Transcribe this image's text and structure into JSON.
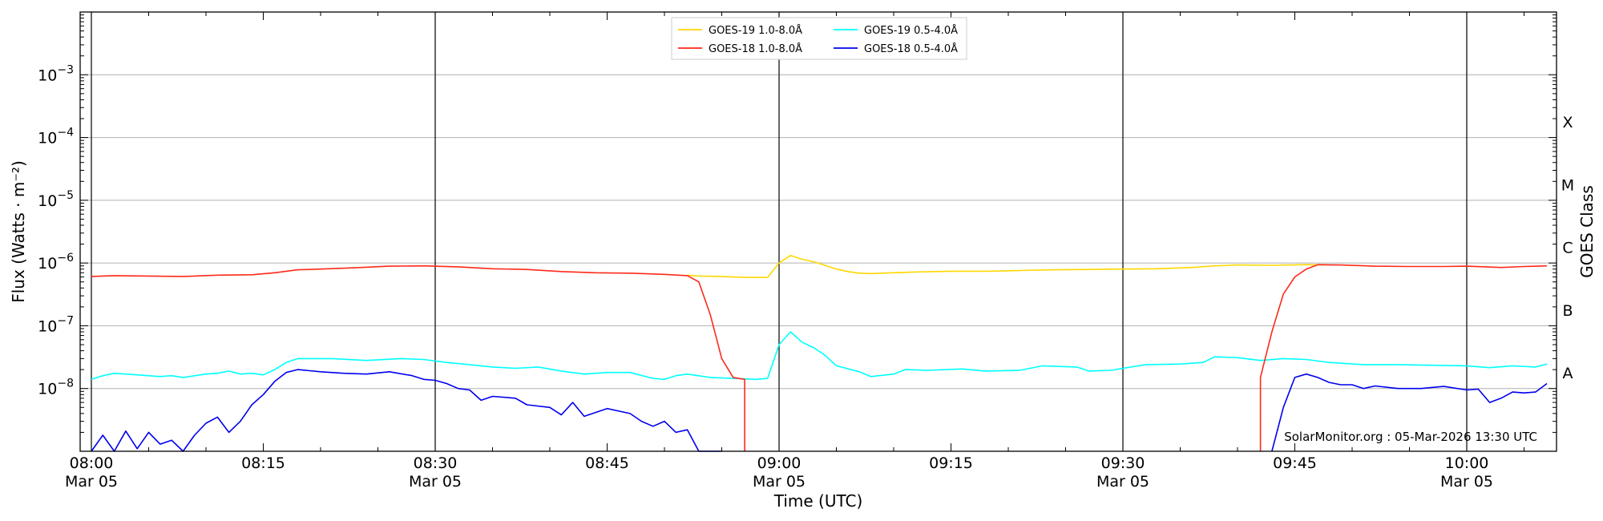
{
  "chart_data": {
    "type": "line",
    "xlabel": "Time (UTC)",
    "ylabel": "Flux (Watts · m⁻²)",
    "ylabel_right": "GOES Class",
    "yscale": "log",
    "ylim": [
      1e-09,
      0.01
    ],
    "xlim": [
      "08:00",
      "10:07"
    ],
    "grid": "horizontal",
    "legend_position": "top-center",
    "footer": "SolarMonitor.org : 05-Mar-2026 13:30 UTC",
    "x_ticks": [
      {
        "time": "08:00",
        "label": "08:00",
        "sub": "Mar 05"
      },
      {
        "time": "08:15",
        "label": "08:15",
        "sub": ""
      },
      {
        "time": "08:30",
        "label": "08:30",
        "sub": "Mar 05"
      },
      {
        "time": "08:45",
        "label": "08:45",
        "sub": ""
      },
      {
        "time": "09:00",
        "label": "09:00",
        "sub": "Mar 05"
      },
      {
        "time": "09:15",
        "label": "09:15",
        "sub": ""
      },
      {
        "time": "09:30",
        "label": "09:30",
        "sub": "Mar 05"
      },
      {
        "time": "09:45",
        "label": "09:45",
        "sub": ""
      },
      {
        "time": "10:00",
        "label": "10:00",
        "sub": "Mar 05"
      }
    ],
    "vlines": [
      "08:00",
      "08:30",
      "09:00",
      "09:30",
      "10:00"
    ],
    "y_ticks": [
      {
        "value": 1e-08,
        "base": "10",
        "exp": "−8"
      },
      {
        "value": 1e-07,
        "base": "10",
        "exp": "−7"
      },
      {
        "value": 1e-06,
        "base": "10",
        "exp": "−6"
      },
      {
        "value": 1e-05,
        "base": "10",
        "exp": "−5"
      },
      {
        "value": 0.0001,
        "base": "10",
        "exp": "−4"
      },
      {
        "value": 0.001,
        "base": "10",
        "exp": "−3"
      }
    ],
    "class_labels": [
      {
        "label": "A",
        "value": 1.78e-08
      },
      {
        "label": "B",
        "value": 1.78e-07
      },
      {
        "label": "C",
        "value": 1.78e-06
      },
      {
        "label": "M",
        "value": 1.78e-05
      },
      {
        "label": "X",
        "value": 0.000178
      }
    ],
    "series": [
      {
        "name": "GOES-19 1.0-8.0Å",
        "color": "#ffd700",
        "points": [
          [
            "08:52",
            6.4e-07
          ],
          [
            "08:53",
            6.2e-07
          ],
          [
            "08:55",
            6.1e-07
          ],
          [
            "08:57",
            5.9e-07
          ],
          [
            "08:59",
            5.9e-07
          ],
          [
            "09:00",
            1e-06
          ],
          [
            "09:01",
            1.32e-06
          ],
          [
            "09:02",
            1.15e-06
          ],
          [
            "09:03",
            1.05e-06
          ],
          [
            "09:04",
            9.2e-07
          ],
          [
            "09:05",
            8e-07
          ],
          [
            "09:06",
            7.3e-07
          ],
          [
            "09:07",
            6.9e-07
          ],
          [
            "09:08",
            6.8e-07
          ],
          [
            "09:10",
            7e-07
          ],
          [
            "09:12",
            7.2e-07
          ],
          [
            "09:15",
            7.4e-07
          ],
          [
            "09:18",
            7.4e-07
          ],
          [
            "09:21",
            7.6e-07
          ],
          [
            "09:24",
            7.8e-07
          ],
          [
            "09:27",
            7.9e-07
          ],
          [
            "09:30",
            8e-07
          ],
          [
            "09:33",
            8.1e-07
          ],
          [
            "09:36",
            8.5e-07
          ],
          [
            "09:38",
            9e-07
          ],
          [
            "09:40",
            9.3e-07
          ],
          [
            "09:43",
            9.2e-07
          ],
          [
            "09:46",
            9.4e-07
          ],
          [
            "09:48",
            9.3e-07
          ]
        ]
      },
      {
        "name": "GOES-18 1.0-8.0Å",
        "color": "#ff2a1a",
        "points": [
          [
            "08:00",
            6.1e-07
          ],
          [
            "08:02",
            6.3e-07
          ],
          [
            "08:05",
            6.2e-07
          ],
          [
            "08:08",
            6.1e-07
          ],
          [
            "08:11",
            6.4e-07
          ],
          [
            "08:14",
            6.5e-07
          ],
          [
            "08:16",
            7e-07
          ],
          [
            "08:18",
            7.8e-07
          ],
          [
            "08:20",
            8e-07
          ],
          [
            "08:23",
            8.4e-07
          ],
          [
            "08:26",
            8.9e-07
          ],
          [
            "08:29",
            9e-07
          ],
          [
            "08:32",
            8.7e-07
          ],
          [
            "08:35",
            8.1e-07
          ],
          [
            "08:38",
            7.9e-07
          ],
          [
            "08:41",
            7.3e-07
          ],
          [
            "08:44",
            7e-07
          ],
          [
            "08:47",
            6.9e-07
          ],
          [
            "08:50",
            6.6e-07
          ],
          [
            "08:52",
            6.3e-07
          ],
          [
            "08:53",
            5e-07
          ],
          [
            "08:54",
            1.5e-07
          ],
          [
            "08:55",
            3e-08
          ],
          [
            "08:56",
            1.5e-08
          ],
          [
            "08:57",
            1.4e-08
          ],
          [
            "08:57",
            1e-09
          ]
        ],
        "points_b": [
          [
            "09:42",
            1e-09
          ],
          [
            "09:42",
            1.5e-08
          ],
          [
            "09:43",
            8e-08
          ],
          [
            "09:44",
            3.2e-07
          ],
          [
            "09:45",
            6e-07
          ],
          [
            "09:46",
            8e-07
          ],
          [
            "09:47",
            9.4e-07
          ],
          [
            "09:49",
            9.3e-07
          ],
          [
            "09:52",
            8.9e-07
          ],
          [
            "09:55",
            8.8e-07
          ],
          [
            "09:58",
            8.8e-07
          ],
          [
            "10:00",
            8.9e-07
          ],
          [
            "10:03",
            8.5e-07
          ],
          [
            "10:05",
            8.8e-07
          ],
          [
            "10:07",
            9e-07
          ]
        ]
      },
      {
        "name": "GOES-19 0.5-4.0Å",
        "color": "#00ffff",
        "points": [
          [
            "08:00",
            1.4e-08
          ],
          [
            "08:01",
            1.6e-08
          ],
          [
            "08:02",
            1.75e-08
          ],
          [
            "08:04",
            1.65e-08
          ],
          [
            "08:06",
            1.55e-08
          ],
          [
            "08:07",
            1.6e-08
          ],
          [
            "08:08",
            1.5e-08
          ],
          [
            "08:10",
            1.7e-08
          ],
          [
            "08:11",
            1.75e-08
          ],
          [
            "08:12",
            1.9e-08
          ],
          [
            "08:13",
            1.7e-08
          ],
          [
            "08:14",
            1.75e-08
          ],
          [
            "08:15",
            1.65e-08
          ],
          [
            "08:16",
            2e-08
          ],
          [
            "08:17",
            2.6e-08
          ],
          [
            "08:18",
            3e-08
          ],
          [
            "08:21",
            3e-08
          ],
          [
            "08:24",
            2.8e-08
          ],
          [
            "08:27",
            3e-08
          ],
          [
            "08:29",
            2.9e-08
          ],
          [
            "08:31",
            2.6e-08
          ],
          [
            "08:33",
            2.4e-08
          ],
          [
            "08:35",
            2.2e-08
          ],
          [
            "08:37",
            2.1e-08
          ],
          [
            "08:39",
            2.2e-08
          ],
          [
            "08:41",
            1.9e-08
          ],
          [
            "08:43",
            1.7e-08
          ],
          [
            "08:45",
            1.8e-08
          ],
          [
            "08:47",
            1.8e-08
          ],
          [
            "08:49",
            1.45e-08
          ],
          [
            "08:50",
            1.4e-08
          ],
          [
            "08:51",
            1.6e-08
          ],
          [
            "08:52",
            1.7e-08
          ],
          [
            "08:54",
            1.5e-08
          ],
          [
            "08:56",
            1.45e-08
          ],
          [
            "08:58",
            1.4e-08
          ],
          [
            "08:59",
            1.45e-08
          ],
          [
            "09:00",
            5e-08
          ],
          [
            "09:01",
            8e-08
          ],
          [
            "09:02",
            5.5e-08
          ],
          [
            "09:03",
            4.5e-08
          ],
          [
            "09:04",
            3.4e-08
          ],
          [
            "09:05",
            2.3e-08
          ],
          [
            "09:07",
            1.85e-08
          ],
          [
            "09:08",
            1.55e-08
          ],
          [
            "09:10",
            1.7e-08
          ],
          [
            "09:11",
            2e-08
          ],
          [
            "09:13",
            1.95e-08
          ],
          [
            "09:16",
            2.05e-08
          ],
          [
            "09:18",
            1.9e-08
          ],
          [
            "09:21",
            1.95e-08
          ],
          [
            "09:23",
            2.3e-08
          ],
          [
            "09:26",
            2.2e-08
          ],
          [
            "09:27",
            1.9e-08
          ],
          [
            "09:29",
            1.95e-08
          ],
          [
            "09:30",
            2.1e-08
          ],
          [
            "09:32",
            2.4e-08
          ],
          [
            "09:35",
            2.45e-08
          ],
          [
            "09:37",
            2.6e-08
          ],
          [
            "09:38",
            3.2e-08
          ],
          [
            "09:40",
            3.1e-08
          ],
          [
            "09:42",
            2.8e-08
          ],
          [
            "09:44",
            3e-08
          ],
          [
            "09:46",
            2.9e-08
          ],
          [
            "09:48",
            2.6e-08
          ],
          [
            "09:51",
            2.4e-08
          ],
          [
            "09:54",
            2.4e-08
          ],
          [
            "09:57",
            2.35e-08
          ],
          [
            "10:00",
            2.3e-08
          ],
          [
            "10:02",
            2.15e-08
          ],
          [
            "10:04",
            2.3e-08
          ],
          [
            "10:06",
            2.2e-08
          ],
          [
            "10:07",
            2.45e-08
          ]
        ]
      },
      {
        "name": "GOES-18 0.5-4.0Å",
        "color": "#0000ee",
        "points": [
          [
            "08:00",
            1e-09
          ],
          [
            "08:01",
            1.8e-09
          ],
          [
            "08:02",
            1e-09
          ],
          [
            "08:03",
            2.1e-09
          ],
          [
            "08:04",
            1.1e-09
          ],
          [
            "08:05",
            2e-09
          ],
          [
            "08:06",
            1.3e-09
          ],
          [
            "08:07",
            1.5e-09
          ],
          [
            "08:08",
            1e-09
          ],
          [
            "08:09",
            1.8e-09
          ],
          [
            "08:10",
            2.8e-09
          ],
          [
            "08:11",
            3.5e-09
          ],
          [
            "08:12",
            2e-09
          ],
          [
            "08:13",
            3e-09
          ],
          [
            "08:14",
            5.5e-09
          ],
          [
            "08:15",
            8e-09
          ],
          [
            "08:16",
            1.3e-08
          ],
          [
            "08:17",
            1.8e-08
          ],
          [
            "08:18",
            2e-08
          ],
          [
            "08:20",
            1.85e-08
          ],
          [
            "08:22",
            1.75e-08
          ],
          [
            "08:24",
            1.7e-08
          ],
          [
            "08:26",
            1.85e-08
          ],
          [
            "08:28",
            1.6e-08
          ],
          [
            "08:29",
            1.4e-08
          ],
          [
            "08:30",
            1.35e-08
          ],
          [
            "08:31",
            1.2e-08
          ],
          [
            "08:32",
            1e-08
          ],
          [
            "08:33",
            9.5e-09
          ],
          [
            "08:34",
            6.5e-09
          ],
          [
            "08:35",
            7.5e-09
          ],
          [
            "08:37",
            7e-09
          ],
          [
            "08:38",
            5.5e-09
          ],
          [
            "08:40",
            5e-09
          ],
          [
            "08:41",
            3.8e-09
          ],
          [
            "08:42",
            6e-09
          ],
          [
            "08:43",
            3.6e-09
          ],
          [
            "08:45",
            4.8e-09
          ],
          [
            "08:47",
            4e-09
          ],
          [
            "08:48",
            3e-09
          ],
          [
            "08:49",
            2.5e-09
          ],
          [
            "08:50",
            3e-09
          ],
          [
            "08:51",
            2e-09
          ],
          [
            "08:52",
            2.2e-09
          ],
          [
            "08:53",
            1e-09
          ],
          [
            "08:55",
            1e-09
          ]
        ],
        "points_b": [
          [
            "09:43",
            1e-09
          ],
          [
            "09:44",
            5e-09
          ],
          [
            "09:45",
            1.5e-08
          ],
          [
            "09:46",
            1.7e-08
          ],
          [
            "09:47",
            1.5e-08
          ],
          [
            "09:48",
            1.25e-08
          ],
          [
            "09:49",
            1.15e-08
          ],
          [
            "09:50",
            1.15e-08
          ],
          [
            "09:51",
            1e-08
          ],
          [
            "09:52",
            1.1e-08
          ],
          [
            "09:54",
            1e-08
          ],
          [
            "09:56",
            1e-08
          ],
          [
            "09:58",
            1.08e-08
          ],
          [
            "10:00",
            9.5e-09
          ],
          [
            "10:01",
            9.8e-09
          ],
          [
            "10:02",
            6e-09
          ],
          [
            "10:03",
            7e-09
          ],
          [
            "10:04",
            8.8e-09
          ],
          [
            "10:05",
            8.5e-09
          ],
          [
            "10:06",
            8.8e-09
          ],
          [
            "10:07",
            1.2e-08
          ]
        ]
      }
    ]
  }
}
